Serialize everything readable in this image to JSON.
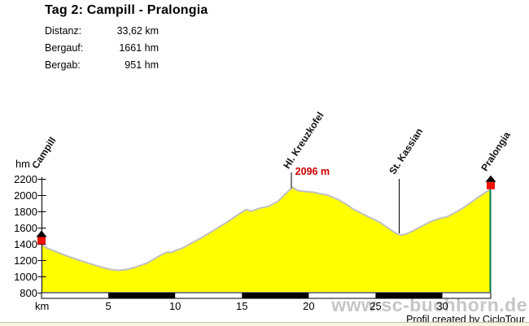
{
  "header": {
    "title": "Tag 2: Campill - Pralongia",
    "stats": [
      {
        "label": "Distanz:",
        "value": "33,62 km"
      },
      {
        "label": "Bergauf:",
        "value": "1661 hm"
      },
      {
        "label": "Bergab:",
        "value": "951 hm"
      }
    ]
  },
  "chart_data": {
    "type": "area",
    "title": "Tag 2: Campill - Pralongia",
    "xlabel": "km",
    "ylabel": "hm",
    "xlim": [
      0,
      33.62
    ],
    "ylim": [
      800,
      2200
    ],
    "x_ticks": [
      5,
      10,
      15,
      20,
      25,
      30
    ],
    "y_ticks": [
      800,
      1000,
      1200,
      1400,
      1600,
      1800,
      2000,
      2200
    ],
    "grid": false,
    "legend": false,
    "colors": {
      "fill": "#ffff00",
      "outline": "#c0c0c0",
      "axis": "#000000",
      "peak_text": "#cc0000",
      "marker_red": "#ee1100",
      "marker_roof": "#000000",
      "end_line": "#007a4d",
      "scalebar_dark": "#000000",
      "scalebar_light": "#ffffff"
    },
    "profile": [
      [
        0,
        1395
      ],
      [
        0.4,
        1350
      ],
      [
        1.0,
        1310
      ],
      [
        1.8,
        1258
      ],
      [
        2.6,
        1212
      ],
      [
        3.4,
        1168
      ],
      [
        4.2,
        1128
      ],
      [
        4.8,
        1100
      ],
      [
        5.3,
        1082
      ],
      [
        5.8,
        1074
      ],
      [
        6.4,
        1086
      ],
      [
        7.0,
        1112
      ],
      [
        7.9,
        1164
      ],
      [
        8.6,
        1232
      ],
      [
        9.1,
        1278
      ],
      [
        9.45,
        1300
      ],
      [
        9.7,
        1294
      ],
      [
        10.1,
        1322
      ],
      [
        10.6,
        1352
      ],
      [
        11.3,
        1418
      ],
      [
        11.9,
        1468
      ],
      [
        12.9,
        1568
      ],
      [
        13.9,
        1668
      ],
      [
        14.8,
        1770
      ],
      [
        15.3,
        1822
      ],
      [
        15.7,
        1802
      ],
      [
        16.3,
        1838
      ],
      [
        17.0,
        1862
      ],
      [
        17.7,
        1924
      ],
      [
        18.2,
        2006
      ],
      [
        18.55,
        2062
      ],
      [
        18.8,
        2096
      ],
      [
        19.1,
        2062
      ],
      [
        19.4,
        2050
      ],
      [
        20.3,
        2036
      ],
      [
        21.4,
        2000
      ],
      [
        22.3,
        1938
      ],
      [
        22.9,
        1878
      ],
      [
        23.3,
        1830
      ],
      [
        23.9,
        1780
      ],
      [
        24.5,
        1730
      ],
      [
        25.3,
        1668
      ],
      [
        26.1,
        1578
      ],
      [
        26.55,
        1528
      ],
      [
        26.9,
        1508
      ],
      [
        27.3,
        1522
      ],
      [
        27.7,
        1552
      ],
      [
        28.4,
        1614
      ],
      [
        29.2,
        1680
      ],
      [
        29.9,
        1718
      ],
      [
        30.3,
        1730
      ],
      [
        30.9,
        1780
      ],
      [
        31.5,
        1836
      ],
      [
        32.1,
        1906
      ],
      [
        32.7,
        1976
      ],
      [
        33.3,
        2040
      ],
      [
        33.62,
        2072
      ]
    ],
    "waypoints": [
      {
        "label": "Campill",
        "km": 0,
        "type": "start_marker"
      },
      {
        "label": "Hl. Kreuzkofel",
        "km": 18.8,
        "type": "peak_pointer"
      },
      {
        "label": "St. Kassian",
        "km": 26.73,
        "type": "valley_pointer"
      },
      {
        "label": "Pralongia",
        "km": 33.62,
        "type": "end_marker"
      }
    ],
    "peak_annotation": {
      "text": "2096 m",
      "km": 18.8,
      "elev": 2096
    }
  },
  "footer": {
    "watermark": "www.sc-buchhorn.de",
    "credit": "Profil created by CicloTour"
  }
}
